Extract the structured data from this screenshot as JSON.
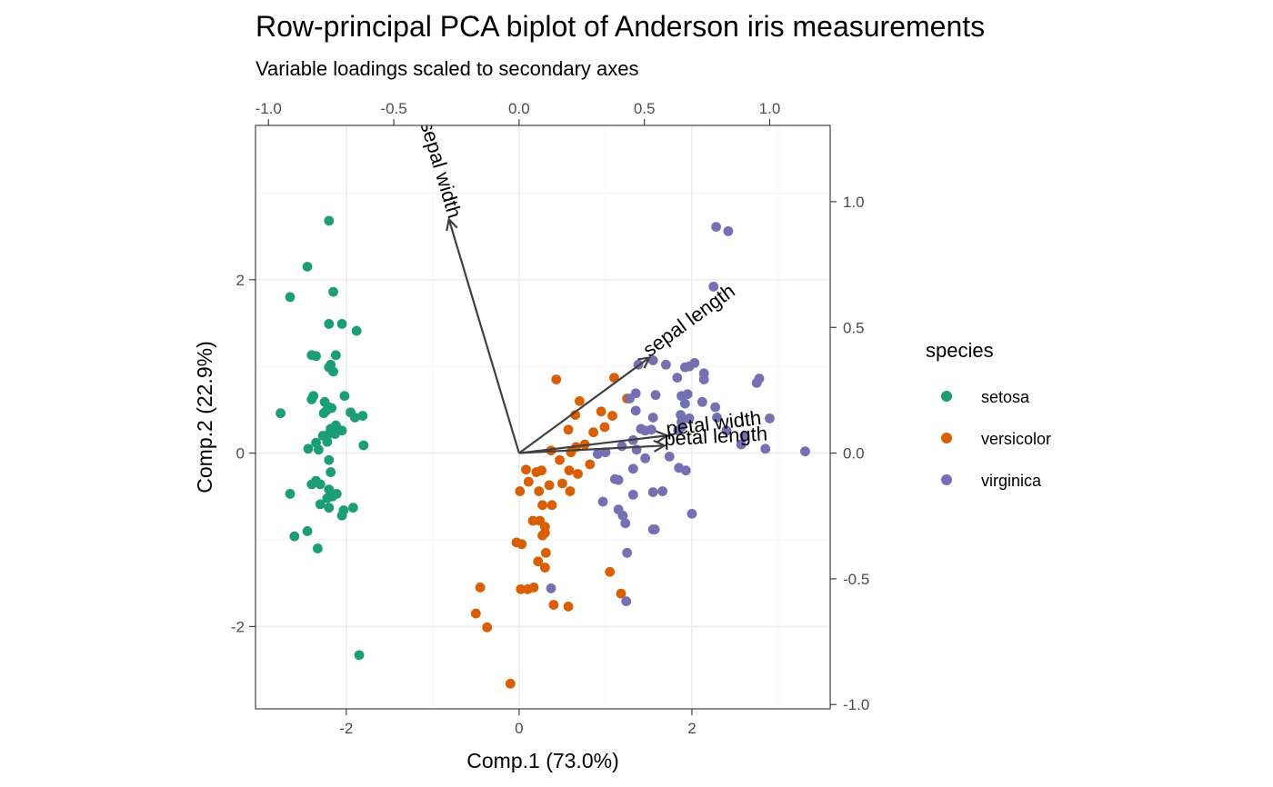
{
  "chart_data": {
    "type": "scatter",
    "title": "Row-principal PCA biplot of Anderson iris measurements",
    "subtitle": "Variable loadings scaled to secondary axes",
    "xlabel": "Comp.1 (73.0%)",
    "ylabel": "Comp.2 (22.9%)",
    "xlim": [
      -3.05,
      3.6
    ],
    "ylim": [
      -2.95,
      3.78
    ],
    "x_ticks": [
      -2,
      0,
      2
    ],
    "y_ticks": [
      -2,
      0,
      2
    ],
    "x_tick_labels": [
      "-2",
      "0",
      "2"
    ],
    "y_tick_labels": [
      "-2",
      "0",
      "2"
    ],
    "secondary_scale": 2.9,
    "secondary_x_ticks": [
      -1.0,
      -0.5,
      0.0,
      0.5,
      1.0
    ],
    "secondary_x_tick_labels": [
      "-1.0",
      "-0.5",
      "0.0",
      "0.5",
      "1.0"
    ],
    "secondary_y_ticks": [
      -1.0,
      -0.5,
      0.0,
      0.5,
      1.0
    ],
    "secondary_y_tick_labels": [
      "-1.0",
      "-0.5",
      "0.0",
      "0.5",
      "1.0"
    ],
    "grid": true,
    "legend": {
      "title": "species",
      "position": "right"
    },
    "series": [
      {
        "name": "setosa",
        "color": "#1b9e77",
        "points": [
          [
            -2.2,
            2.68
          ],
          [
            -2.45,
            2.15
          ],
          [
            -2.65,
            1.8
          ],
          [
            -2.15,
            1.86
          ],
          [
            -2.2,
            1.49
          ],
          [
            -2.05,
            1.49
          ],
          [
            -1.88,
            1.41
          ],
          [
            -2.4,
            1.13
          ],
          [
            -2.35,
            1.12
          ],
          [
            -2.12,
            1.13
          ],
          [
            -2.18,
            1.02
          ],
          [
            -2.2,
            0.99
          ],
          [
            -2.15,
            0.94
          ],
          [
            -2.02,
            0.66
          ],
          [
            -2.25,
            0.59
          ],
          [
            -2.38,
            0.66
          ],
          [
            -2.2,
            0.53
          ],
          [
            -2.17,
            0.52
          ],
          [
            -2.23,
            0.49
          ],
          [
            -2.26,
            0.46
          ],
          [
            -2.76,
            0.46
          ],
          [
            -2.4,
            0.62
          ],
          [
            -1.95,
            0.47
          ],
          [
            -1.9,
            0.41
          ],
          [
            -1.81,
            0.43
          ],
          [
            -2.12,
            0.32
          ],
          [
            -2.18,
            0.28
          ],
          [
            -2.05,
            0.26
          ],
          [
            -2.2,
            0.22
          ],
          [
            -2.13,
            0.22
          ],
          [
            -2.27,
            0.2
          ],
          [
            -2.35,
            0.12
          ],
          [
            -2.22,
            0.13
          ],
          [
            -2.44,
            0.05
          ],
          [
            -2.32,
            0.04
          ],
          [
            -1.8,
            0.09
          ],
          [
            -2.2,
            -0.08
          ],
          [
            -2.35,
            -0.32
          ],
          [
            -2.4,
            -0.36
          ],
          [
            -2.3,
            -0.36
          ],
          [
            -2.18,
            -0.22
          ],
          [
            -2.2,
            -0.42
          ],
          [
            -2.11,
            -0.47
          ],
          [
            -2.16,
            -0.5
          ],
          [
            -2.22,
            -0.52
          ],
          [
            -2.65,
            -0.47
          ],
          [
            -2.3,
            -0.59
          ],
          [
            -2.2,
            -0.63
          ],
          [
            -2.03,
            -0.66
          ],
          [
            -2.05,
            -0.72
          ],
          [
            -1.92,
            -0.63
          ],
          [
            -2.45,
            -0.9
          ],
          [
            -2.6,
            -0.96
          ],
          [
            -2.33,
            -1.1
          ],
          [
            -1.85,
            -2.33
          ]
        ]
      },
      {
        "name": "versicolor",
        "color": "#d95f02",
        "points": [
          [
            0.43,
            0.85
          ],
          [
            1.1,
            0.87
          ],
          [
            1.25,
            0.63
          ],
          [
            0.7,
            0.6
          ],
          [
            0.95,
            0.48
          ],
          [
            0.65,
            0.44
          ],
          [
            1.08,
            0.43
          ],
          [
            0.99,
            0.3
          ],
          [
            0.57,
            0.27
          ],
          [
            0.86,
            0.24
          ],
          [
            0.76,
            0.1
          ],
          [
            0.66,
            0.07
          ],
          [
            0.37,
            0.03
          ],
          [
            0.6,
            0.01
          ],
          [
            0.47,
            -0.08
          ],
          [
            0.82,
            -0.13
          ],
          [
            0.58,
            -0.2
          ],
          [
            0.68,
            -0.24
          ],
          [
            0.2,
            -0.22
          ],
          [
            0.08,
            -0.19
          ],
          [
            0.26,
            -0.2
          ],
          [
            0.11,
            -0.33
          ],
          [
            0.5,
            -0.35
          ],
          [
            0.35,
            -0.37
          ],
          [
            0.59,
            -0.44
          ],
          [
            0.23,
            -0.44
          ],
          [
            0.01,
            -0.44
          ],
          [
            0.27,
            -0.6
          ],
          [
            0.38,
            -0.6
          ],
          [
            0.24,
            -0.78
          ],
          [
            0.16,
            -0.78
          ],
          [
            0.3,
            -0.85
          ],
          [
            0.3,
            -0.92
          ],
          [
            0.27,
            -0.95
          ],
          [
            -0.03,
            -1.03
          ],
          [
            0.03,
            -1.05
          ],
          [
            0.31,
            -1.15
          ],
          [
            0.22,
            -1.25
          ],
          [
            0.3,
            -1.32
          ],
          [
            1.05,
            -1.37
          ],
          [
            -0.45,
            -1.55
          ],
          [
            0.17,
            -1.55
          ],
          [
            0.02,
            -1.57
          ],
          [
            0.1,
            -1.57
          ],
          [
            1.18,
            -1.62
          ],
          [
            0.4,
            -1.75
          ],
          [
            0.57,
            -1.77
          ],
          [
            -0.5,
            -1.85
          ],
          [
            -0.37,
            -2.01
          ],
          [
            -0.1,
            -2.66
          ]
        ]
      },
      {
        "name": "virginica",
        "color": "#7570b3",
        "points": [
          [
            2.28,
            2.61
          ],
          [
            2.42,
            2.56
          ],
          [
            2.25,
            1.92
          ],
          [
            1.55,
            1.07
          ],
          [
            1.38,
            1.02
          ],
          [
            1.7,
            1.02
          ],
          [
            1.97,
            1.0
          ],
          [
            2.03,
            1.04
          ],
          [
            1.92,
            0.99
          ],
          [
            1.83,
            0.87
          ],
          [
            2.14,
            0.92
          ],
          [
            2.14,
            0.85
          ],
          [
            2.75,
            0.81
          ],
          [
            2.78,
            0.86
          ],
          [
            1.35,
            0.69
          ],
          [
            1.58,
            0.67
          ],
          [
            1.88,
            0.66
          ],
          [
            1.95,
            0.68
          ],
          [
            1.28,
            0.63
          ],
          [
            1.92,
            0.57
          ],
          [
            2.12,
            0.59
          ],
          [
            2.27,
            0.53
          ],
          [
            1.35,
            0.49
          ],
          [
            1.87,
            0.44
          ],
          [
            2.4,
            0.26
          ],
          [
            2.29,
            0.41
          ],
          [
            2.9,
            0.4
          ],
          [
            1.55,
            0.41
          ],
          [
            1.88,
            0.36
          ],
          [
            1.97,
            0.4
          ],
          [
            1.41,
            0.28
          ],
          [
            1.46,
            0.26
          ],
          [
            1.53,
            0.27
          ],
          [
            1.84,
            0.26
          ],
          [
            1.88,
            0.3
          ],
          [
            2.61,
            0.2
          ],
          [
            2.57,
            0.1
          ],
          [
            2.85,
            0.05
          ],
          [
            3.31,
            0.02
          ],
          [
            1.32,
            0.15
          ],
          [
            1.19,
            0.08
          ],
          [
            1.36,
            0.04
          ],
          [
            1.46,
            -0.06
          ],
          [
            1.74,
            -0.04
          ],
          [
            1.32,
            -0.18
          ],
          [
            1.0,
            0.01
          ],
          [
            0.91,
            -0.01
          ],
          [
            1.85,
            -0.17
          ],
          [
            1.93,
            -0.2
          ],
          [
            1.11,
            -0.3
          ],
          [
            1.15,
            -0.31
          ],
          [
            1.55,
            -0.45
          ],
          [
            1.66,
            -0.44
          ],
          [
            1.32,
            -0.48
          ],
          [
            0.97,
            -0.56
          ],
          [
            1.15,
            -0.65
          ],
          [
            1.2,
            -0.72
          ],
          [
            1.23,
            -0.81
          ],
          [
            1.55,
            -0.88
          ],
          [
            2.0,
            -0.7
          ],
          [
            1.25,
            -1.15
          ],
          [
            0.37,
            -1.56
          ],
          [
            1.24,
            -1.71
          ],
          [
            1.57,
            -0.88
          ]
        ]
      }
    ],
    "loadings": [
      {
        "name": "sepal length",
        "x": 0.52,
        "y": 0.38
      },
      {
        "name": "sepal width",
        "x": -0.28,
        "y": 0.93
      },
      {
        "name": "petal width",
        "x": 0.59,
        "y": 0.07
      },
      {
        "name": "petal length",
        "x": 0.58,
        "y": 0.03
      }
    ]
  }
}
